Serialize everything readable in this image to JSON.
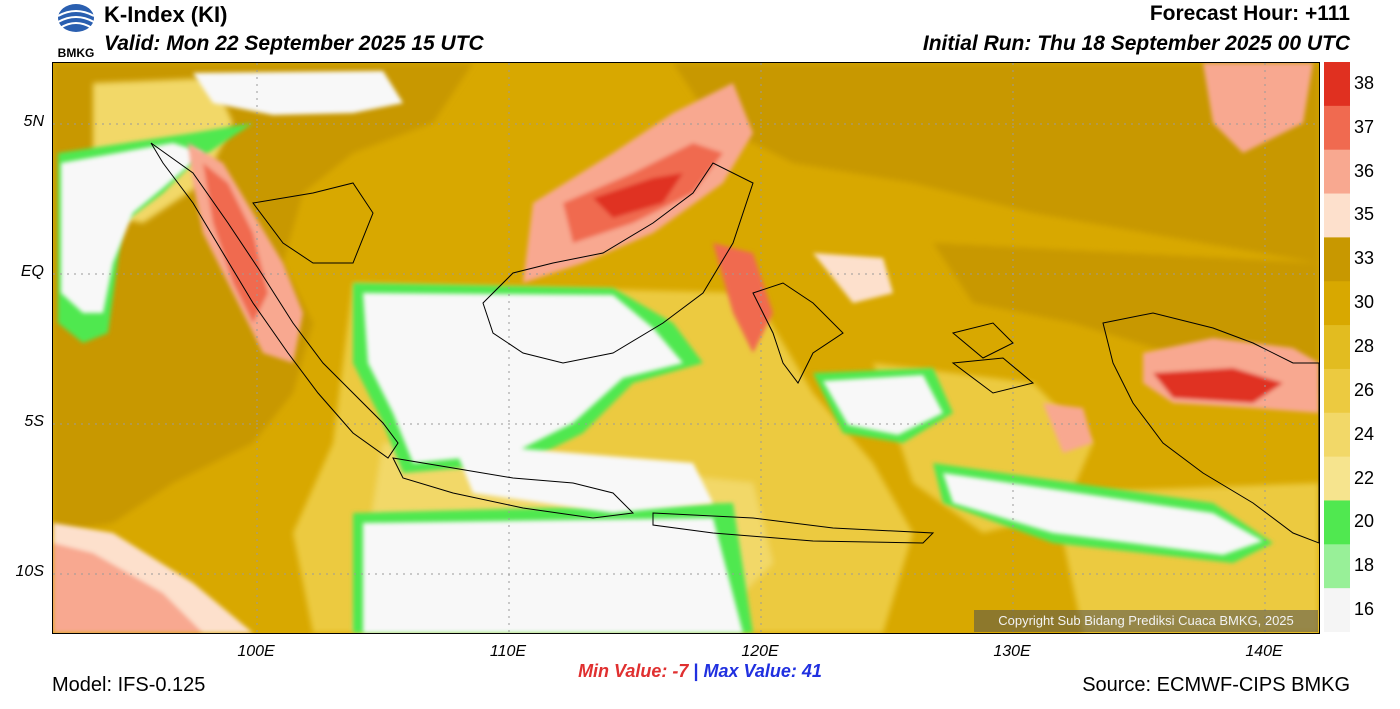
{
  "header": {
    "title": "K-Index (KI)",
    "valid": "Valid: Mon 22 September 2025 15 UTC",
    "forecast_hour": "Forecast Hour: +111",
    "initial_run": "Initial Run: Thu 18 September 2025 00 UTC",
    "logo_text": "BMKG"
  },
  "axes": {
    "lat_labels": [
      "5N",
      "EQ",
      "5S",
      "10S"
    ],
    "lon_labels": [
      "100E",
      "110E",
      "120E",
      "130E",
      "140E"
    ]
  },
  "colorbar": {
    "labels": [
      "38",
      "37",
      "36",
      "35",
      "33",
      "30",
      "28",
      "26",
      "24",
      "22",
      "20",
      "18",
      "16"
    ],
    "colors": [
      "#e03020",
      "#f06a50",
      "#f8a890",
      "#fde0cc",
      "#c89800",
      "#d8a800",
      "#e2bc20",
      "#ecca40",
      "#f2d868",
      "#f6e48e",
      "#50e850",
      "#98f098",
      "#f5f5f5"
    ]
  },
  "stats": {
    "min_label": "Min Value:",
    "min_value": "-7",
    "separator": "|",
    "max_label": "Max Value:",
    "max_value": "41"
  },
  "footer": {
    "model": "Model: IFS-0.125",
    "source": "Source: ECMWF-CIPS BMKG",
    "copyright": "Copyright Sub Bidang Prediksi Cuaca BMKG, 2025"
  }
}
